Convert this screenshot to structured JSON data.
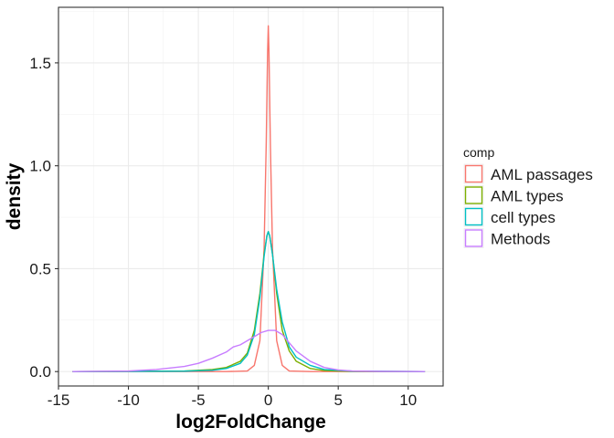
{
  "chart_data": {
    "type": "line",
    "title": "",
    "xlabel": "log2FoldChange",
    "ylabel": "density",
    "xlim": [
      -15,
      12.5
    ],
    "ylim": [
      -0.07,
      1.77
    ],
    "x_ticks": [
      -15,
      -10,
      -5,
      0,
      5,
      10
    ],
    "x_tick_labels": [
      "-15",
      "-10",
      "-5",
      "0",
      "5",
      "10"
    ],
    "y_ticks": [
      0.0,
      0.5,
      1.0,
      1.5
    ],
    "y_tick_labels": [
      "0.0",
      "0.5",
      "1.0",
      "1.5"
    ],
    "grid": true,
    "legend": {
      "title": "comp",
      "placement": "right",
      "entries": [
        "AML passages",
        "AML types",
        "cell types",
        "Methods"
      ]
    },
    "series": [
      {
        "name": "AML passages",
        "color": "#F8766D",
        "x": [
          -14,
          -6,
          -3,
          -1.5,
          -1,
          -0.6,
          -0.3,
          -0.15,
          -0.05,
          0,
          0.05,
          0.15,
          0.3,
          0.6,
          1,
          1.5,
          3,
          6,
          11.2
        ],
        "y": [
          0,
          0,
          0,
          0.003,
          0.03,
          0.15,
          0.6,
          1.1,
          1.55,
          1.68,
          1.55,
          1.1,
          0.6,
          0.15,
          0.03,
          0.003,
          0,
          0,
          0
        ]
      },
      {
        "name": "AML types",
        "color": "#7CAE00",
        "x": [
          -14,
          -6,
          -4,
          -3,
          -2,
          -1.5,
          -1,
          -0.6,
          -0.3,
          -0.1,
          0,
          0.1,
          0.3,
          0.6,
          1,
          1.5,
          2,
          3,
          4,
          6,
          11.2
        ],
        "y": [
          0,
          0.003,
          0.01,
          0.02,
          0.05,
          0.09,
          0.2,
          0.38,
          0.57,
          0.66,
          0.68,
          0.66,
          0.57,
          0.38,
          0.2,
          0.1,
          0.05,
          0.015,
          0.005,
          0.001,
          0
        ]
      },
      {
        "name": "cell types",
        "color": "#00BFC4",
        "x": [
          -14,
          -6,
          -4,
          -3,
          -2,
          -1.5,
          -1,
          -0.6,
          -0.3,
          -0.1,
          0,
          0.1,
          0.3,
          0.6,
          1,
          1.5,
          2,
          3,
          4,
          6,
          11.2
        ],
        "y": [
          0,
          0.002,
          0.006,
          0.015,
          0.04,
          0.08,
          0.18,
          0.36,
          0.56,
          0.66,
          0.68,
          0.66,
          0.57,
          0.4,
          0.24,
          0.12,
          0.07,
          0.03,
          0.01,
          0.002,
          0
        ]
      },
      {
        "name": "Methods",
        "color": "#C77CFF",
        "x": [
          -14,
          -10,
          -8,
          -6,
          -5,
          -4,
          -3,
          -2.5,
          -2,
          -1.5,
          -1,
          -0.5,
          0,
          0.5,
          1,
          1.5,
          2,
          3,
          4,
          5,
          6,
          8,
          11.2
        ],
        "y": [
          0,
          0.003,
          0.01,
          0.025,
          0.04,
          0.065,
          0.095,
          0.12,
          0.13,
          0.15,
          0.17,
          0.19,
          0.2,
          0.2,
          0.18,
          0.14,
          0.1,
          0.05,
          0.02,
          0.008,
          0.003,
          0.001,
          0
        ]
      }
    ]
  }
}
